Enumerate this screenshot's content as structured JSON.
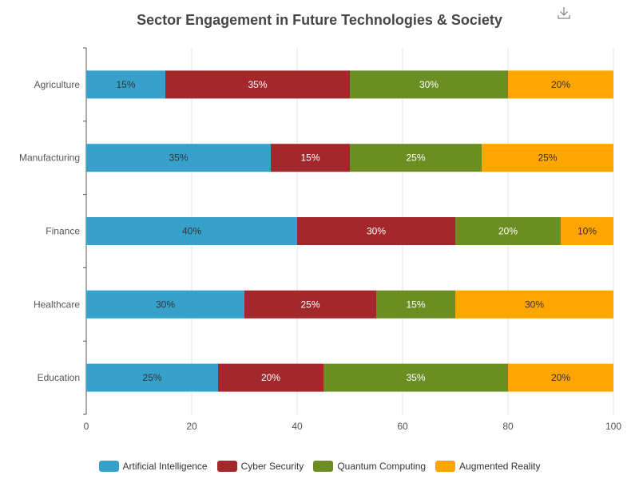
{
  "toolbar": {
    "download_icon": "download-icon"
  },
  "chart_data": {
    "type": "bar",
    "orientation": "horizontal",
    "stacked": true,
    "title": "Sector Engagement in Future Technologies & Society",
    "categories": [
      "Agriculture",
      "Manufacturing",
      "Finance",
      "Healthcare",
      "Education"
    ],
    "series": [
      {
        "name": "Artificial Intelligence",
        "color": "#36a2cc",
        "label_color": "#333333",
        "values": [
          15,
          35,
          40,
          30,
          25
        ]
      },
      {
        "name": "Cyber Security",
        "color": "#a3282b",
        "label_color": "#ffffff",
        "values": [
          35,
          15,
          30,
          25,
          20
        ]
      },
      {
        "name": "Quantum Computing",
        "color": "#6b8e23",
        "label_color": "#ffffff",
        "values": [
          30,
          25,
          20,
          15,
          35
        ]
      },
      {
        "name": "Augmented Reality",
        "color": "#ffa500",
        "label_color": "#333333",
        "values": [
          20,
          25,
          10,
          30,
          20
        ]
      }
    ],
    "xlim": [
      0,
      100
    ],
    "xticks": [
      0,
      20,
      40,
      60,
      80,
      100
    ],
    "value_suffix": "%",
    "grid": true,
    "legend_position": "bottom-center"
  }
}
